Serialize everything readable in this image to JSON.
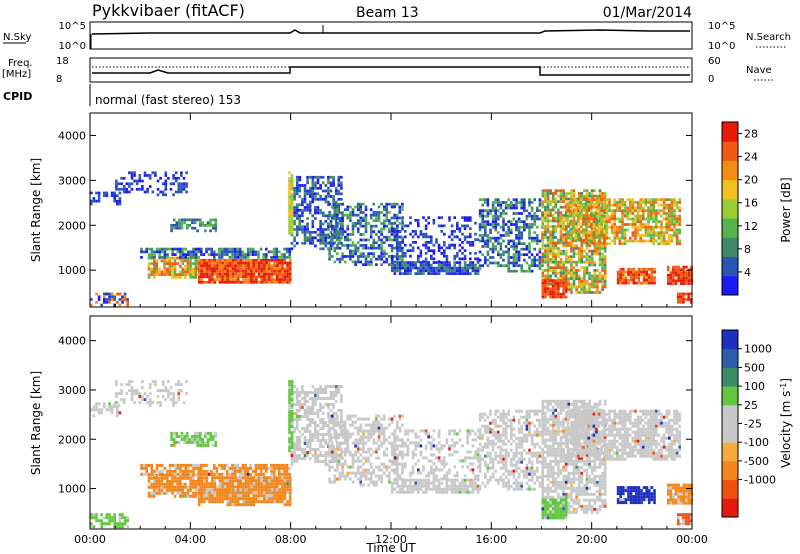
{
  "header": {
    "title": "Pykkvibaer (fitACF)",
    "beam": "Beam 13",
    "date": "01/Mar/2014"
  },
  "top_panels": {
    "nsky_label": "N.Sky",
    "nsky_ticks": [
      "10^5",
      "10^0"
    ],
    "nsearch_label": "N.Search",
    "nsearch_ticks": [
      "10^5",
      "10^0"
    ],
    "freq_label": "Freq.",
    "freq_unit": "[MHz]",
    "freq_ticks": [
      "18",
      "8"
    ],
    "nave_label": "Nave",
    "nave_ticks": [
      "60",
      "0"
    ],
    "cpid_label": "CPID",
    "cpid_text": "normal (fast stereo) 153"
  },
  "colors": {
    "power_scale": [
      "#1b1bf5",
      "#2b55b5",
      "#3f8a6b",
      "#55b34b",
      "#9acd32",
      "#f2c020",
      "#f28c14",
      "#f25a10",
      "#e81a0a"
    ],
    "velocity_scale": [
      "#e51b12",
      "#f25010",
      "#f2861a",
      "#f4ad3a",
      "#c8c8c8",
      "#c8c8c8",
      "#5fc83c",
      "#3d8c68",
      "#2a5fa8",
      "#1c2fbf"
    ],
    "ground_scatter": "#c8c8c8"
  },
  "chart_data": [
    {
      "type": "heatmap",
      "title": "",
      "xlabel": "Time UT",
      "ylabel": "Slant Range [km]",
      "xlim": [
        "00:00",
        "24:00"
      ],
      "ylim": [
        180,
        4500
      ],
      "x_ticks": [
        "00:00",
        "04:00",
        "08:00",
        "12:00",
        "16:00",
        "20:00",
        "00:00"
      ],
      "y_ticks": [
        "1000",
        "2000",
        "3000",
        "4000"
      ],
      "colorbar": {
        "label": "Power [dB]",
        "ticks": [
          "4",
          "8",
          "12",
          "16",
          "20",
          "24",
          "28"
        ],
        "range": [
          0,
          30
        ]
      }
    },
    {
      "type": "heatmap",
      "title": "",
      "xlabel": "Time UT",
      "ylabel": "Slant Range [km]",
      "xlim": [
        "00:00",
        "24:00"
      ],
      "ylim": [
        180,
        4500
      ],
      "x_ticks": [
        "00:00",
        "04:00",
        "08:00",
        "12:00",
        "16:00",
        "20:00",
        "00:00"
      ],
      "y_ticks": [
        "1000",
        "2000",
        "3000",
        "4000"
      ],
      "colorbar": {
        "label": "Velocity [m s^-1]",
        "ticks": [
          "1000",
          "500",
          "100",
          "25",
          "-25",
          "-100",
          "-500",
          "-1000"
        ]
      }
    }
  ]
}
